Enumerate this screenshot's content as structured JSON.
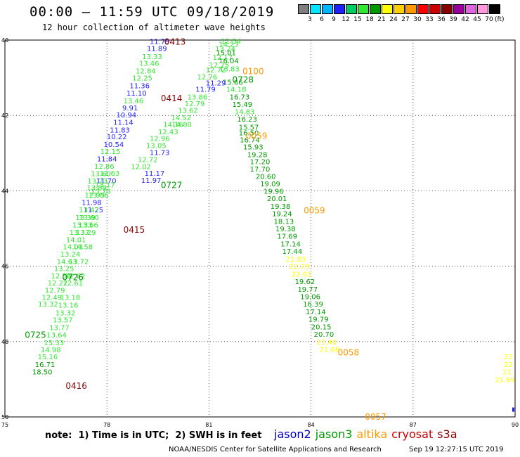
{
  "header": {
    "title": "00:00 – 11:59 UTC 09/18/2019",
    "subtitle": "12 hour collection of altimeter wave heights"
  },
  "colorbar": {
    "unit": "(ft)",
    "labels": [
      "3",
      "6",
      "9",
      "12",
      "15",
      "18",
      "21",
      "24",
      "27",
      "30",
      "33",
      "36",
      "39",
      "42",
      "45",
      "70"
    ],
    "colors": [
      "#7f7f7f",
      "#00e5ff",
      "#00b4ff",
      "#1f1fff",
      "#00cc66",
      "#33e633",
      "#009900",
      "#ffff00",
      "#ffd000",
      "#ff9900",
      "#ff0000",
      "#cc0000",
      "#880000",
      "#990099",
      "#e066e0",
      "#ff99dd",
      "#000000"
    ]
  },
  "map": {
    "lon_ticks": [
      "75",
      "78",
      "81",
      "84",
      "87",
      "90"
    ],
    "lat_ticks": [
      "40",
      "42",
      "44",
      "46",
      "48",
      "50"
    ],
    "lon_range": [
      75,
      90
    ],
    "lat_range": [
      40,
      50
    ]
  },
  "chart_data": {
    "type": "scatter",
    "title": "00:00 – 11:59 UTC 09/18/2019",
    "subtitle": "12 hour collection of altimeter wave heights",
    "satellite_colors": {
      "jason2": "#0000cc",
      "jason3": "#009900",
      "altika": "#ff9900",
      "cryosat": "#cc0000",
      "s3a": "#880000"
    },
    "passes": [
      {
        "sat": "s3a",
        "time": "0413",
        "lon": 80.0,
        "lat": 40.03
      },
      {
        "sat": "s3a",
        "time": "0414",
        "lon": 79.9,
        "lat": 41.53
      },
      {
        "sat": "s3a",
        "time": "0415",
        "lon": 78.8,
        "lat": 45.02
      },
      {
        "sat": "s3a",
        "time": "0416",
        "lon": 77.1,
        "lat": 49.16
      },
      {
        "sat": "jason3",
        "time": "0725",
        "lon": 75.9,
        "lat": 47.81
      },
      {
        "sat": "jason3",
        "time": "0726",
        "lon": 77.0,
        "lat": 46.28
      },
      {
        "sat": "jason3",
        "time": "0727",
        "lon": 79.9,
        "lat": 43.83
      },
      {
        "sat": "jason3",
        "time": "0728",
        "lon": 82.0,
        "lat": 41.04
      },
      {
        "sat": "altika",
        "time": "0100",
        "lon": 82.3,
        "lat": 40.81
      },
      {
        "sat": "altika",
        "time": "0059",
        "lon": 82.4,
        "lat": 42.53
      },
      {
        "sat": "altika",
        "time": "0059",
        "lon": 84.1,
        "lat": 44.51
      },
      {
        "sat": "altika",
        "time": "0058",
        "lon": 85.1,
        "lat": 48.27
      },
      {
        "sat": "altika",
        "time": "0057",
        "lon": 85.9,
        "lat": 49.98
      }
    ],
    "observations": [
      {
        "lon": 79.55,
        "lat": 40.03,
        "value": "11.79",
        "color": "#1f1fff"
      },
      {
        "lon": 79.47,
        "lat": 40.21,
        "value": "11.89",
        "color": "#1f1fff"
      },
      {
        "lon": 79.33,
        "lat": 40.43,
        "value": "13.33",
        "color": "#33e633"
      },
      {
        "lon": 79.24,
        "lat": 40.61,
        "value": "13.46",
        "color": "#33e633"
      },
      {
        "lon": 79.14,
        "lat": 40.81,
        "value": "12.84",
        "color": "#33e633"
      },
      {
        "lon": 79.04,
        "lat": 41.0,
        "value": "12.25",
        "color": "#33e633"
      },
      {
        "lon": 78.96,
        "lat": 41.2,
        "value": "11.36",
        "color": "#1f1fff"
      },
      {
        "lon": 78.87,
        "lat": 41.4,
        "value": "11.10",
        "color": "#1f1fff"
      },
      {
        "lon": 78.78,
        "lat": 41.6,
        "value": "13.46",
        "color": "#33e633"
      },
      {
        "lon": 78.68,
        "lat": 41.79,
        "value": "9.91",
        "color": "#1f1fff"
      },
      {
        "lon": 78.57,
        "lat": 41.98,
        "value": "10.94",
        "color": "#1f1fff"
      },
      {
        "lon": 78.48,
        "lat": 42.17,
        "value": "11.14",
        "color": "#1f1fff"
      },
      {
        "lon": 78.38,
        "lat": 42.38,
        "value": "11.83",
        "color": "#1f1fff"
      },
      {
        "lon": 78.29,
        "lat": 42.56,
        "value": "10.22",
        "color": "#1f1fff"
      },
      {
        "lon": 78.2,
        "lat": 42.76,
        "value": "10.54",
        "color": "#1f1fff"
      },
      {
        "lon": 78.1,
        "lat": 42.95,
        "value": "12.15",
        "color": "#33e633"
      },
      {
        "lon": 78.0,
        "lat": 43.14,
        "value": "11.84",
        "color": "#1f1fff"
      },
      {
        "lon": 77.92,
        "lat": 43.34,
        "value": "12.86",
        "color": "#33e633"
      },
      {
        "lon": 77.82,
        "lat": 43.54,
        "value": "13.60",
        "color": "#33e633"
      },
      {
        "lon": 78.08,
        "lat": 43.53,
        "value": "12.63",
        "color": "#33e633"
      },
      {
        "lon": 77.98,
        "lat": 43.72,
        "value": "11.70",
        "color": "#1f1fff"
      },
      {
        "lon": 77.94,
        "lat": 43.83,
        "value": "13.17",
        "color": "#33e633"
      },
      {
        "lon": 77.72,
        "lat": 43.73,
        "value": "13.23",
        "color": "#33e633"
      },
      {
        "lon": 77.7,
        "lat": 43.91,
        "value": "13.89",
        "color": "#33e633"
      },
      {
        "lon": 77.82,
        "lat": 44.0,
        "value": "13.78",
        "color": "#33e633"
      },
      {
        "lon": 77.64,
        "lat": 44.1,
        "value": "12.95",
        "color": "#33e633"
      },
      {
        "lon": 77.75,
        "lat": 44.1,
        "value": "13.06",
        "color": "#33e633"
      },
      {
        "lon": 77.55,
        "lat": 44.3,
        "value": "11.98",
        "color": "#1f1fff"
      },
      {
        "lon": 77.6,
        "lat": 44.5,
        "value": "11.25",
        "color": "#1f1fff"
      },
      {
        "lon": 77.47,
        "lat": 44.5,
        "value": "13.47",
        "color": "#33e633"
      },
      {
        "lon": 77.37,
        "lat": 44.7,
        "value": "13.39",
        "color": "#33e633"
      },
      {
        "lon": 77.47,
        "lat": 44.7,
        "value": "13.60",
        "color": "#33e633"
      },
      {
        "lon": 77.28,
        "lat": 44.9,
        "value": "13.33",
        "color": "#33e633"
      },
      {
        "lon": 77.45,
        "lat": 44.9,
        "value": "13.66",
        "color": "#33e633"
      },
      {
        "lon": 77.19,
        "lat": 45.09,
        "value": "13.37",
        "color": "#33e633"
      },
      {
        "lon": 77.38,
        "lat": 45.09,
        "value": "13.29",
        "color": "#33e633"
      },
      {
        "lon": 77.09,
        "lat": 45.29,
        "value": "14.01",
        "color": "#33e633"
      },
      {
        "lon": 77.0,
        "lat": 45.48,
        "value": "14.03",
        "color": "#33e633"
      },
      {
        "lon": 77.29,
        "lat": 45.48,
        "value": "14.58",
        "color": "#33e633"
      },
      {
        "lon": 76.92,
        "lat": 45.67,
        "value": "13.24",
        "color": "#33e633"
      },
      {
        "lon": 76.82,
        "lat": 45.87,
        "value": "14.63",
        "color": "#33e633"
      },
      {
        "lon": 77.17,
        "lat": 45.87,
        "value": "13.72",
        "color": "#33e633"
      },
      {
        "lon": 76.74,
        "lat": 46.05,
        "value": "13.25",
        "color": "#33e633"
      },
      {
        "lon": 76.65,
        "lat": 46.25,
        "value": "12.59",
        "color": "#33e633"
      },
      {
        "lon": 77.07,
        "lat": 46.25,
        "value": "12.62",
        "color": "#33e633"
      },
      {
        "lon": 76.55,
        "lat": 46.44,
        "value": "12.22",
        "color": "#33e633"
      },
      {
        "lon": 77.0,
        "lat": 46.44,
        "value": "12.61",
        "color": "#33e633"
      },
      {
        "lon": 76.47,
        "lat": 46.63,
        "value": "12.79",
        "color": "#33e633"
      },
      {
        "lon": 76.38,
        "lat": 46.82,
        "value": "12.49",
        "color": "#33e633"
      },
      {
        "lon": 76.92,
        "lat": 46.82,
        "value": "13.18",
        "color": "#33e633"
      },
      {
        "lon": 76.27,
        "lat": 47.0,
        "value": "13.32",
        "color": "#33e633"
      },
      {
        "lon": 76.86,
        "lat": 47.02,
        "value": "13.16",
        "color": "#33e633"
      },
      {
        "lon": 76.78,
        "lat": 47.23,
        "value": "13.32",
        "color": "#33e633"
      },
      {
        "lon": 76.7,
        "lat": 47.42,
        "value": "13.57",
        "color": "#33e633"
      },
      {
        "lon": 76.6,
        "lat": 47.62,
        "value": "13.77",
        "color": "#33e633"
      },
      {
        "lon": 76.52,
        "lat": 47.82,
        "value": "13.64",
        "color": "#33e633"
      },
      {
        "lon": 76.44,
        "lat": 48.02,
        "value": "15.33",
        "color": "#33e633"
      },
      {
        "lon": 76.35,
        "lat": 48.21,
        "value": "14.98",
        "color": "#33e633"
      },
      {
        "lon": 76.26,
        "lat": 48.4,
        "value": "15.16",
        "color": "#33e633"
      },
      {
        "lon": 76.18,
        "lat": 48.6,
        "value": "16.71",
        "color": "#009900"
      },
      {
        "lon": 76.1,
        "lat": 48.8,
        "value": "18.50",
        "color": "#009900"
      },
      {
        "lon": 81.65,
        "lat": 40.02,
        "value": "12.54",
        "color": "#33e633"
      },
      {
        "lon": 81.58,
        "lat": 40.1,
        "value": "14.23",
        "color": "#33e633"
      },
      {
        "lon": 81.48,
        "lat": 40.22,
        "value": "13.24",
        "color": "#33e633"
      },
      {
        "lon": 81.5,
        "lat": 40.33,
        "value": "15.01",
        "color": "#009900"
      },
      {
        "lon": 81.4,
        "lat": 40.45,
        "value": "12.17",
        "color": "#33e633"
      },
      {
        "lon": 81.58,
        "lat": 40.54,
        "value": "16.04",
        "color": "#009900"
      },
      {
        "lon": 81.3,
        "lat": 40.65,
        "value": "12.75",
        "color": "#33e633"
      },
      {
        "lon": 81.2,
        "lat": 40.78,
        "value": "12.72",
        "color": "#33e633"
      },
      {
        "lon": 81.6,
        "lat": 40.76,
        "value": "13.83",
        "color": "#33e633"
      },
      {
        "lon": 80.95,
        "lat": 40.97,
        "value": "12.76",
        "color": "#33e633"
      },
      {
        "lon": 81.7,
        "lat": 41.11,
        "value": "15.66",
        "color": "#009900"
      },
      {
        "lon": 81.2,
        "lat": 41.13,
        "value": "11.29",
        "color": "#1f1fff"
      },
      {
        "lon": 80.9,
        "lat": 41.3,
        "value": "11.79",
        "color": "#1f1fff"
      },
      {
        "lon": 81.8,
        "lat": 41.3,
        "value": "14.18",
        "color": "#33e633"
      },
      {
        "lon": 80.66,
        "lat": 41.5,
        "value": "13.86",
        "color": "#33e633"
      },
      {
        "lon": 81.9,
        "lat": 41.5,
        "value": "16.73",
        "color": "#009900"
      },
      {
        "lon": 80.58,
        "lat": 41.68,
        "value": "12.79",
        "color": "#33e633"
      },
      {
        "lon": 81.98,
        "lat": 41.7,
        "value": "15.49",
        "color": "#009900"
      },
      {
        "lon": 80.38,
        "lat": 41.86,
        "value": "13.62",
        "color": "#33e633"
      },
      {
        "lon": 82.05,
        "lat": 41.89,
        "value": "14.83",
        "color": "#33e633"
      },
      {
        "lon": 80.18,
        "lat": 42.05,
        "value": "14.52",
        "color": "#33e633"
      },
      {
        "lon": 82.12,
        "lat": 42.09,
        "value": "16.23",
        "color": "#009900"
      },
      {
        "lon": 79.95,
        "lat": 42.23,
        "value": "14.16",
        "color": "#33e633"
      },
      {
        "lon": 80.2,
        "lat": 42.23,
        "value": "14.80",
        "color": "#33e633"
      },
      {
        "lon": 82.17,
        "lat": 42.3,
        "value": "15.57",
        "color": "#009900"
      },
      {
        "lon": 79.8,
        "lat": 42.43,
        "value": "12.43",
        "color": "#33e633"
      },
      {
        "lon": 82.17,
        "lat": 42.45,
        "value": "16.50",
        "color": "#009900"
      },
      {
        "lon": 79.55,
        "lat": 42.6,
        "value": "12.96",
        "color": "#33e633"
      },
      {
        "lon": 82.2,
        "lat": 42.64,
        "value": "16.74",
        "color": "#009900"
      },
      {
        "lon": 79.45,
        "lat": 42.79,
        "value": "13.05",
        "color": "#33e633"
      },
      {
        "lon": 82.3,
        "lat": 42.83,
        "value": "15.93",
        "color": "#009900"
      },
      {
        "lon": 79.55,
        "lat": 42.98,
        "value": "11.73",
        "color": "#1f1fff"
      },
      {
        "lon": 79.2,
        "lat": 43.16,
        "value": "12.72",
        "color": "#33e633"
      },
      {
        "lon": 82.42,
        "lat": 43.03,
        "value": "19.28",
        "color": "#009900"
      },
      {
        "lon": 79.0,
        "lat": 43.35,
        "value": "12.02",
        "color": "#33e633"
      },
      {
        "lon": 82.5,
        "lat": 43.22,
        "value": "17.20",
        "color": "#009900"
      },
      {
        "lon": 79.4,
        "lat": 43.53,
        "value": "11.17",
        "color": "#1f1fff"
      },
      {
        "lon": 82.5,
        "lat": 43.41,
        "value": "17.70",
        "color": "#009900"
      },
      {
        "lon": 82.67,
        "lat": 43.61,
        "value": "20.60",
        "color": "#009900"
      },
      {
        "lon": 79.3,
        "lat": 43.71,
        "value": "11.97",
        "color": "#1f1fff"
      },
      {
        "lon": 82.8,
        "lat": 43.81,
        "value": "19.09",
        "color": "#009900"
      },
      {
        "lon": 82.9,
        "lat": 44.0,
        "value": "19.96",
        "color": "#009900"
      },
      {
        "lon": 83.0,
        "lat": 44.2,
        "value": "20.01",
        "color": "#009900"
      },
      {
        "lon": 83.1,
        "lat": 44.4,
        "value": "19.38",
        "color": "#009900"
      },
      {
        "lon": 83.15,
        "lat": 44.6,
        "value": "19.24",
        "color": "#009900"
      },
      {
        "lon": 83.2,
        "lat": 44.8,
        "value": "18.13",
        "color": "#009900"
      },
      {
        "lon": 83.25,
        "lat": 45.0,
        "value": "19.38",
        "color": "#009900"
      },
      {
        "lon": 83.3,
        "lat": 45.2,
        "value": "17.69",
        "color": "#009900"
      },
      {
        "lon": 83.4,
        "lat": 45.4,
        "value": "17.14",
        "color": "#009900"
      },
      {
        "lon": 83.45,
        "lat": 45.6,
        "value": "17.44",
        "color": "#009900"
      },
      {
        "lon": 83.55,
        "lat": 45.8,
        "value": "21.83",
        "color": "#ffff00"
      },
      {
        "lon": 83.65,
        "lat": 46.0,
        "value": "22.79",
        "color": "#ffff00"
      },
      {
        "lon": 83.72,
        "lat": 46.2,
        "value": "22.01",
        "color": "#ffff00"
      },
      {
        "lon": 83.82,
        "lat": 46.4,
        "value": "19.62",
        "color": "#009900"
      },
      {
        "lon": 83.9,
        "lat": 46.6,
        "value": "19.77",
        "color": "#009900"
      },
      {
        "lon": 83.98,
        "lat": 46.8,
        "value": "19.06",
        "color": "#009900"
      },
      {
        "lon": 84.06,
        "lat": 47.0,
        "value": "16.39",
        "color": "#009900"
      },
      {
        "lon": 84.14,
        "lat": 47.2,
        "value": "17.14",
        "color": "#009900"
      },
      {
        "lon": 84.22,
        "lat": 47.4,
        "value": "19.79",
        "color": "#009900"
      },
      {
        "lon": 84.3,
        "lat": 47.6,
        "value": "20.15",
        "color": "#009900"
      },
      {
        "lon": 84.38,
        "lat": 47.8,
        "value": "20.70",
        "color": "#009900"
      },
      {
        "lon": 84.46,
        "lat": 48.0,
        "value": "21.40",
        "color": "#ffff00"
      },
      {
        "lon": 84.54,
        "lat": 48.2,
        "value": "21.68",
        "color": "#ffff00"
      },
      {
        "lon": 89.8,
        "lat": 48.4,
        "value": "22",
        "color": "#ffff00"
      },
      {
        "lon": 89.8,
        "lat": 48.6,
        "value": "22",
        "color": "#ffff00"
      },
      {
        "lon": 89.8,
        "lat": 48.8,
        "value": "21.",
        "color": "#ffff00"
      },
      {
        "lon": 89.7,
        "lat": 49.0,
        "value": "21.69",
        "color": "#ffff00"
      }
    ]
  },
  "footer": {
    "note": "note:  1) Time is in UTC;  2) SWH is in feet",
    "satellites": [
      {
        "name": "jason2",
        "color": "#0000cc"
      },
      {
        "name": "jason3",
        "color": "#009900"
      },
      {
        "name": "altika",
        "color": "#ff9900"
      },
      {
        "name": "cryosat",
        "color": "#cc0000"
      },
      {
        "name": "s3a",
        "color": "#880000"
      }
    ],
    "credit": "NOAA/NESDIS Center for Satellite Applications and Research",
    "timestamp": "Sep 19 12:27:15 UTC 2019"
  }
}
